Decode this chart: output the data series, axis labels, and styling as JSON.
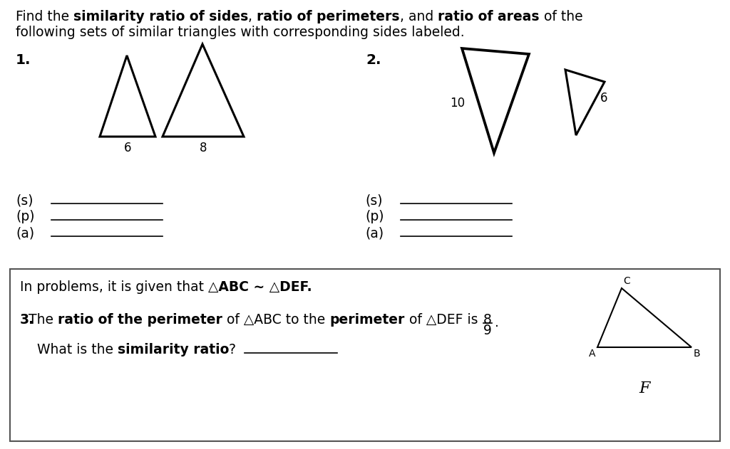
{
  "bg_color": "#ffffff",
  "line_color": "#000000",
  "tri1_small_base": "6",
  "tri1_large_base": "8",
  "tri2_left_label": "10",
  "tri2_right_label": "6",
  "frac_num": "8",
  "frac_den": "9",
  "font_size": 13.5
}
